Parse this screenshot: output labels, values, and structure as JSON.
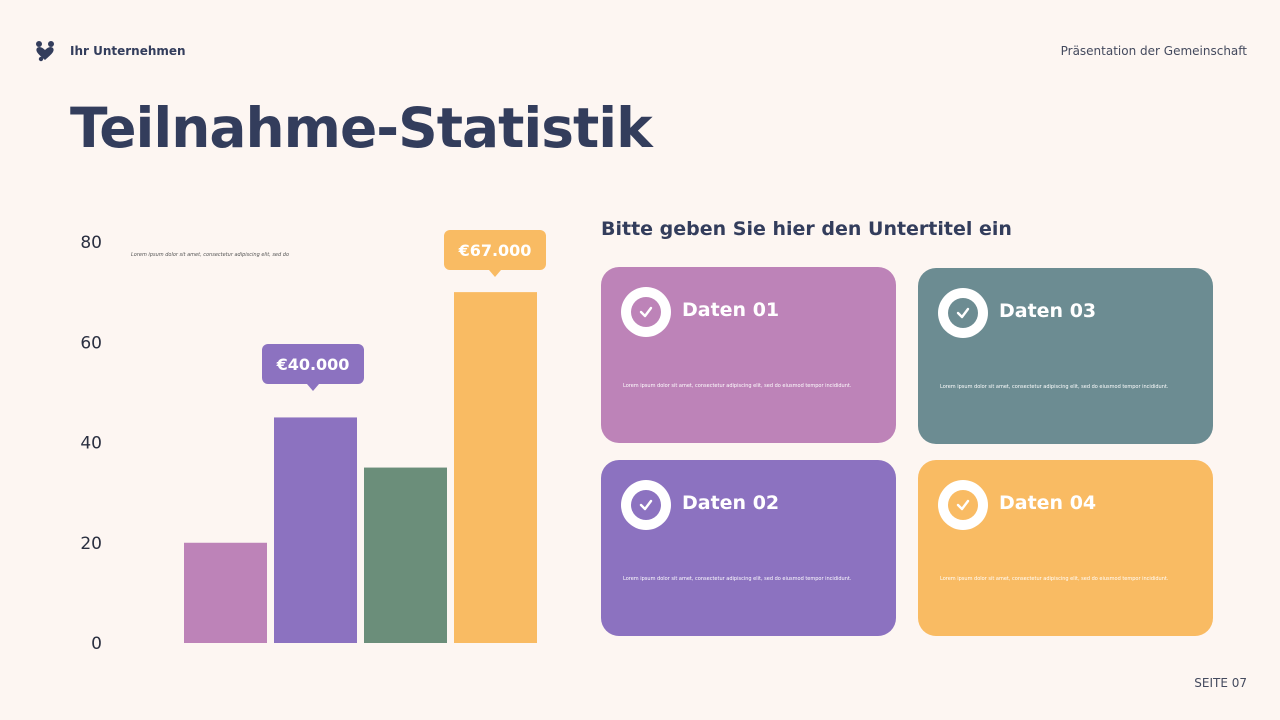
{
  "header": {
    "brand": "Ihr Unternehmen",
    "right_text": "Präsentation der Gemeinschaft"
  },
  "title": "Teilnahme-Statistik",
  "subtitle": "Bitte geben Sie hier den Untertitel ein",
  "chart_note": "Lorem ipsum dolor sit amet, consectetur adipiscing elit, sed do",
  "chart_data": {
    "type": "bar",
    "categories": [
      "",
      "",
      "",
      ""
    ],
    "values": [
      20,
      45,
      35,
      70
    ],
    "colors": [
      "#bd83b8",
      "#8c72c0",
      "#6b8e7a",
      "#f9bb63"
    ],
    "ylim": [
      0,
      80
    ],
    "yticks": [
      0,
      20,
      40,
      60,
      80
    ],
    "grid": false,
    "annotations": [
      {
        "bar": 1,
        "label": "€40.000"
      },
      {
        "bar": 3,
        "label": "€67.000"
      }
    ]
  },
  "callouts": {
    "first": "€40.000",
    "second": "€67.000"
  },
  "cards": [
    {
      "title": "Daten 01",
      "text": "Lorem ipsum dolor sit amet, consectetur adipiscing elit, sed do eiusmod tempor incididunt.",
      "color": "#bd83b8"
    },
    {
      "title": "Daten 02",
      "text": "Lorem ipsum dolor sit amet, consectetur adipiscing elit, sed do eiusmod tempor incididunt.",
      "color": "#8c72c0"
    },
    {
      "title": "Daten 03",
      "text": "Lorem ipsum dolor sit amet, consectetur adipiscing elit, sed do eiusmod tempor incididunt.",
      "color": "#6c8c92"
    },
    {
      "title": "Daten 04",
      "text": "Lorem ipsum dolor sit amet, consectetur adipiscing elit, sed do eiusmod tempor incididunt.",
      "color": "#f9bb63"
    }
  ],
  "footer": {
    "page": "SEITE 07"
  },
  "icons": {
    "logo": "hearts-people-icon",
    "card": "check-circle-icon"
  }
}
